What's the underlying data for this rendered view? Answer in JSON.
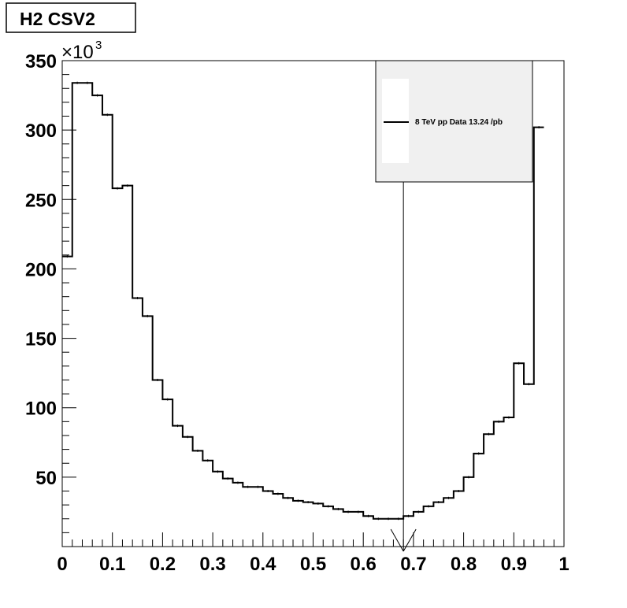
{
  "title": "H2 CSV2",
  "legend": {
    "entry": "8 TeV pp Data 13.24 /pb"
  },
  "y_exponent": {
    "base": "×10",
    "power": "3"
  },
  "colors": {
    "line": "#000000",
    "legend_bg": "#f0f0f0",
    "frame": "#000000"
  },
  "chart_data": {
    "type": "histogram",
    "title": "H2 CSV2",
    "xlabel": "",
    "ylabel": "",
    "xlim": [
      0,
      1
    ],
    "ylim": [
      0,
      350
    ],
    "y_unit_multiplier": "10^3",
    "x_ticks": [
      "0",
      "0.1",
      "0.2",
      "0.3",
      "0.4",
      "0.5",
      "0.6",
      "0.7",
      "0.8",
      "0.9",
      "1"
    ],
    "y_ticks": [
      "50",
      "100",
      "150",
      "200",
      "250",
      "300",
      "350"
    ],
    "legend_placement": "top-right",
    "series": [
      {
        "name": "8 TeV pp Data 13.24 /pb",
        "bin_width": 0.02,
        "bin_start": 0.0,
        "values": [
          209,
          334,
          334,
          325,
          311,
          258,
          260,
          179,
          166,
          120,
          106,
          87,
          79,
          69,
          62,
          54,
          49,
          46,
          43,
          43,
          40,
          38,
          35,
          33,
          32,
          31,
          29,
          27,
          25,
          25,
          22,
          20,
          20,
          20,
          22,
          25,
          29,
          32,
          35,
          40,
          50,
          67,
          81,
          90,
          93,
          132,
          117,
          302
        ]
      }
    ],
    "annotations": [
      {
        "type": "vertical-line",
        "x": 0.68,
        "y_top": 300,
        "note": "arrow"
      }
    ]
  }
}
